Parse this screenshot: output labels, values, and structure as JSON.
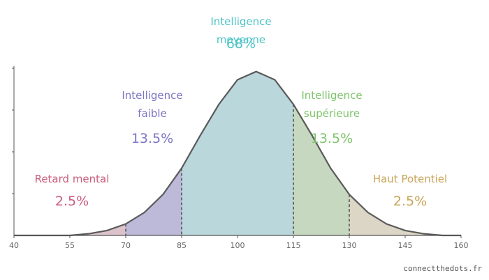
{
  "chart_data": {
    "type": "area",
    "x": [
      40,
      45,
      50,
      55,
      60,
      65,
      70,
      75,
      80,
      85,
      90,
      95,
      100,
      105,
      110,
      115,
      120,
      125,
      130,
      135,
      140,
      145,
      150,
      155,
      160
    ],
    "values": [
      0,
      0,
      0,
      0,
      0.01,
      0.03,
      0.07,
      0.14,
      0.25,
      0.41,
      0.61,
      0.8,
      0.95,
      1,
      0.95,
      0.8,
      0.61,
      0.41,
      0.25,
      0.14,
      0.07,
      0.03,
      0.01,
      0,
      0
    ],
    "xlim": [
      40,
      160
    ],
    "ylim": [
      0,
      1.02
    ],
    "xticks": [
      40,
      55,
      70,
      85,
      100,
      115,
      130,
      145,
      160
    ],
    "line_color": "#5a5a5a",
    "regions": [
      {
        "name": "Retard mental",
        "value": 2.5,
        "value_label": "2.5%",
        "from": 40,
        "to": 70,
        "color": "#dcc3cb",
        "text_color": "#c95c7c"
      },
      {
        "name": "Intelligence faible",
        "value": 13.5,
        "value_label": "13.5%",
        "from": 70,
        "to": 85,
        "color": "#bcb9d9",
        "text_color": "#7b74c4"
      },
      {
        "name": "Intelligence moyenne",
        "value": 68,
        "value_label": "68%",
        "from": 85,
        "to": 115,
        "color": "#bad7db",
        "text_color": "#4ec3c6"
      },
      {
        "name": "Intelligence supérieure",
        "value": 13.5,
        "value_label": "13.5%",
        "from": 115,
        "to": 130,
        "color": "#c6d9c0",
        "text_color": "#7ec46c"
      },
      {
        "name": "Haut Potentiel",
        "value": 2.5,
        "value_label": "2.5%",
        "from": 130,
        "to": 160,
        "color": "#dcd6c6",
        "text_color": "#c9a55a"
      }
    ]
  },
  "footer": "connectthedots.fr"
}
